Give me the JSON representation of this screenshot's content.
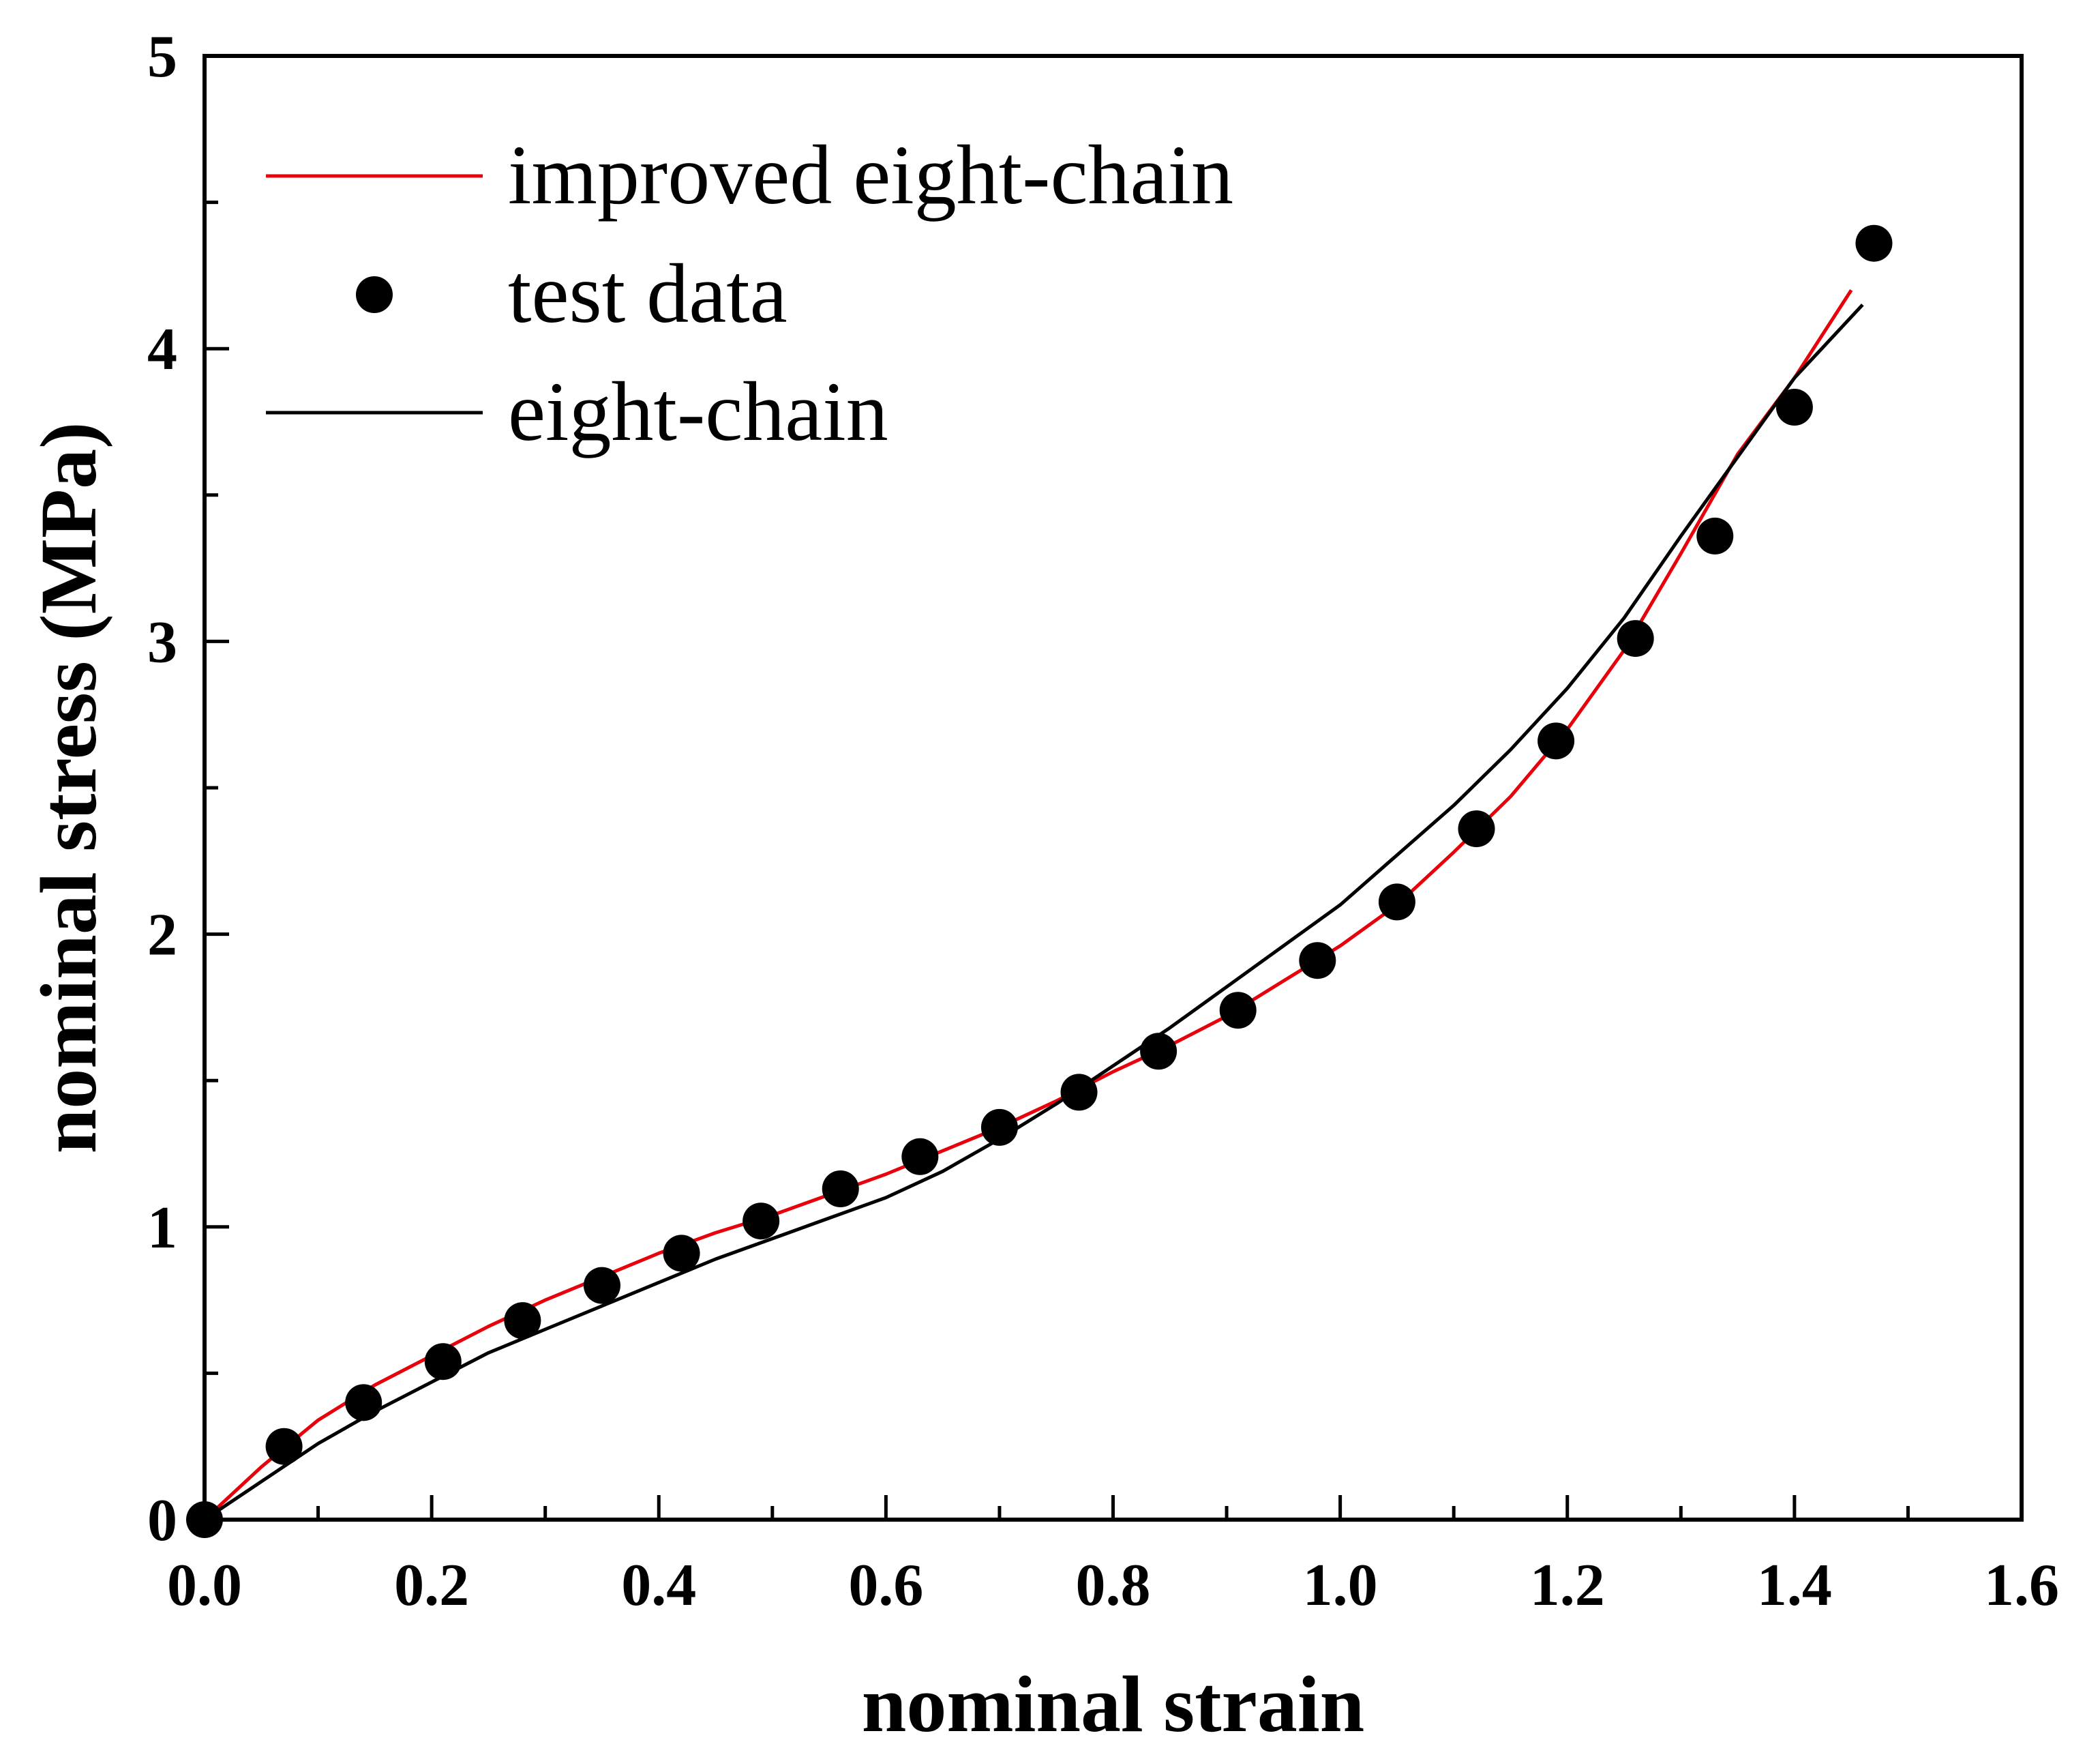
{
  "chart_data": {
    "type": "line",
    "title": "",
    "xlabel": "nominal strain",
    "ylabel": "nominal stress (MPa)",
    "xlim": [
      0.0,
      1.6
    ],
    "ylim": [
      0,
      5
    ],
    "grid": false,
    "legend_position": "top-left",
    "xticks": [
      0.0,
      0.2,
      0.4,
      0.6,
      0.8,
      1.0,
      1.2,
      1.4,
      1.6
    ],
    "xtick_labels": [
      "0.0",
      "0.2",
      "0.4",
      "0.6",
      "0.8",
      "1.0",
      "1.2",
      "1.4",
      "1.6"
    ],
    "yticks": [
      0,
      1,
      2,
      3,
      4,
      5
    ],
    "ytick_labels": [
      "0",
      "1",
      "2",
      "3",
      "4",
      "5"
    ],
    "series": [
      {
        "name": "improved eight-chain",
        "style": "line",
        "color": "#e8000b",
        "x": [
          0.0,
          0.05,
          0.1,
          0.15,
          0.2,
          0.25,
          0.3,
          0.35,
          0.4,
          0.45,
          0.5,
          0.55,
          0.6,
          0.65,
          0.7,
          0.75,
          0.8,
          0.85,
          0.9,
          0.95,
          1.0,
          1.05,
          1.1,
          1.15,
          1.2,
          1.25,
          1.3,
          1.35,
          1.4,
          1.45
        ],
        "y": [
          0.0,
          0.18,
          0.34,
          0.46,
          0.56,
          0.66,
          0.75,
          0.83,
          0.91,
          0.98,
          1.04,
          1.11,
          1.18,
          1.26,
          1.34,
          1.43,
          1.53,
          1.62,
          1.72,
          1.84,
          1.96,
          2.1,
          2.28,
          2.47,
          2.7,
          2.97,
          3.3,
          3.64,
          3.9,
          4.2
        ]
      },
      {
        "name": "test data",
        "style": "markers",
        "color": "#000000",
        "x": [
          0.0,
          0.07,
          0.14,
          0.21,
          0.28,
          0.35,
          0.42,
          0.49,
          0.56,
          0.63,
          0.7,
          0.77,
          0.84,
          0.91,
          0.98,
          1.05,
          1.12,
          1.19,
          1.26,
          1.33,
          1.4,
          1.47
        ],
        "y": [
          0.0,
          0.25,
          0.4,
          0.54,
          0.68,
          0.8,
          0.91,
          1.02,
          1.13,
          1.24,
          1.34,
          1.46,
          1.6,
          1.74,
          1.91,
          2.11,
          2.36,
          2.66,
          3.01,
          3.36,
          3.8,
          4.36
        ]
      },
      {
        "name": "eight-chain",
        "style": "line",
        "color": "#000000",
        "x": [
          0.0,
          0.05,
          0.1,
          0.15,
          0.2,
          0.25,
          0.3,
          0.35,
          0.4,
          0.45,
          0.5,
          0.55,
          0.6,
          0.65,
          0.7,
          0.75,
          0.8,
          0.85,
          0.9,
          0.95,
          1.0,
          1.05,
          1.1,
          1.15,
          1.2,
          1.25,
          1.3,
          1.35,
          1.4,
          1.46
        ],
        "y": [
          0.0,
          0.13,
          0.26,
          0.37,
          0.47,
          0.57,
          0.65,
          0.73,
          0.81,
          0.89,
          0.96,
          1.03,
          1.1,
          1.19,
          1.3,
          1.42,
          1.55,
          1.68,
          1.82,
          1.96,
          2.1,
          2.27,
          2.44,
          2.63,
          2.84,
          3.08,
          3.36,
          3.63,
          3.9,
          4.15
        ]
      }
    ]
  }
}
